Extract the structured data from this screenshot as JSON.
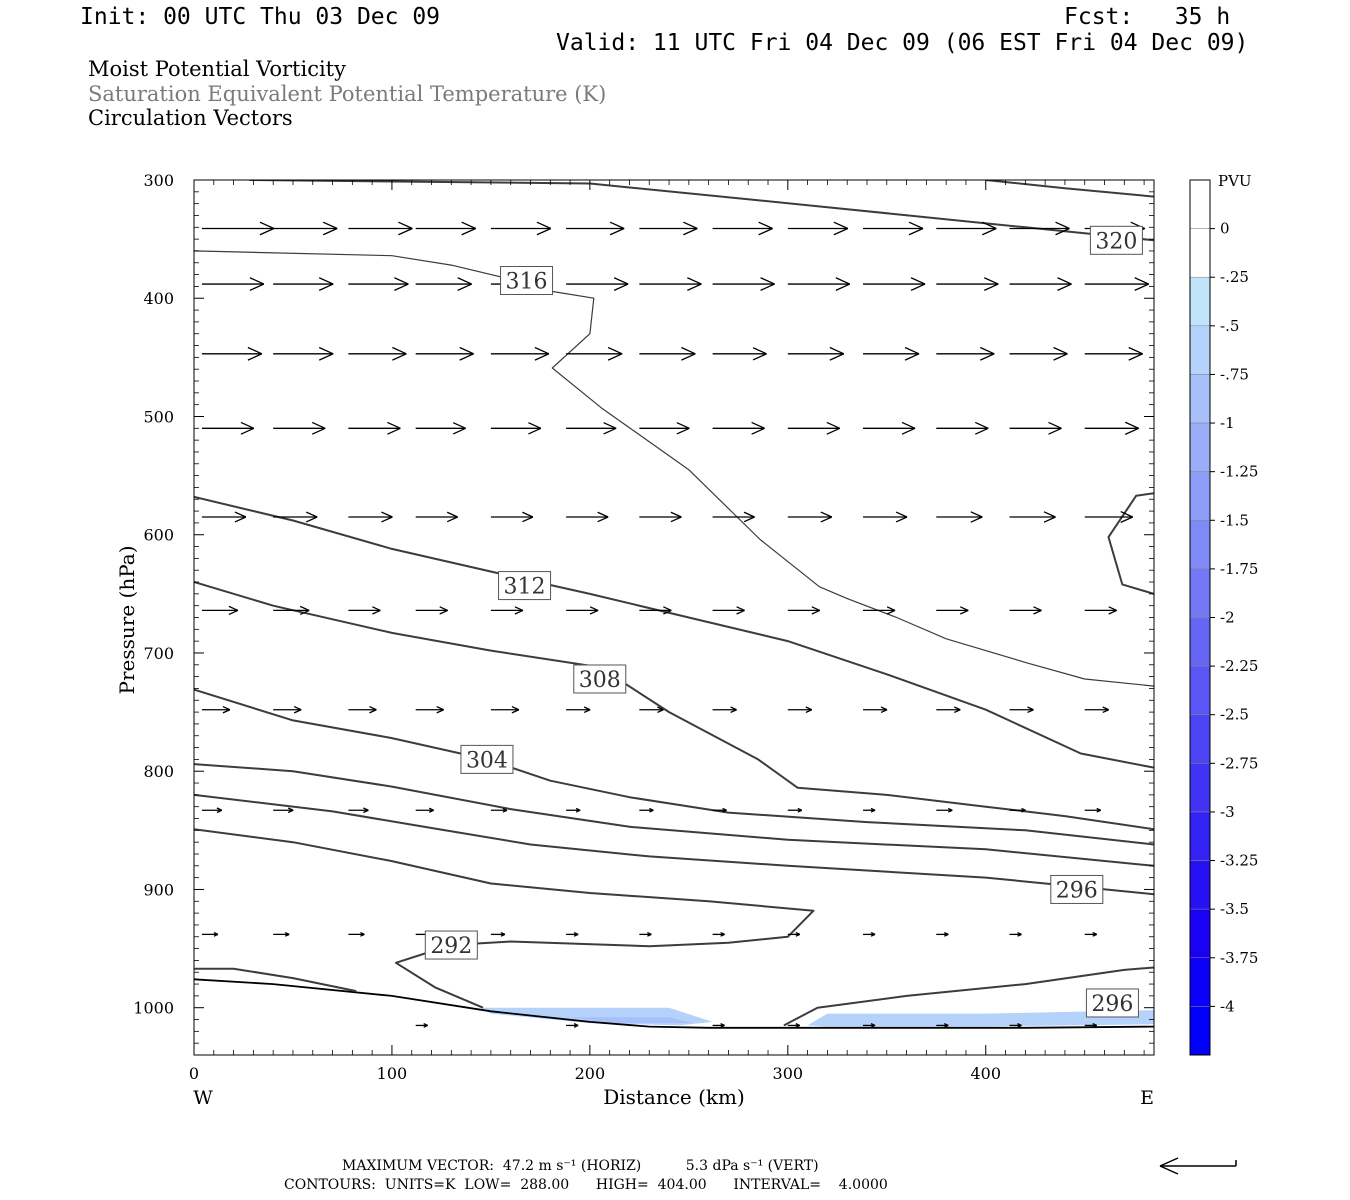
{
  "header": {
    "init": "Init: 00 UTC Thu 03 Dec 09",
    "fcst": "Fcst:   35 h",
    "valid": "Valid: 11 UTC Fri 04 Dec 09 (06 EST Fri 04 Dec 09)"
  },
  "titles": {
    "line1": "Moist Potential Vorticity",
    "line2": "Saturation Equivalent Potential Temperature (K)",
    "line3": "Circulation Vectors"
  },
  "colors": {
    "line1": "#000000",
    "line2": "#7a7a7a",
    "line3": "#000000",
    "contour": "#3c3c3c",
    "arrow": "#000000"
  },
  "footer": {
    "max_vector": "MAXIMUM VECTOR:  47.2 m s⁻¹ (HORIZ)          5.3 dPa s⁻¹ (VERT)",
    "contours": "CONTOURS:  UNITS=K  LOW=  288.00      HIGH=  404.00      INTERVAL=    4.0000"
  },
  "chart_data": {
    "type": "cross-section",
    "xlabel": "Distance (km)",
    "ylabel": "Pressure (hPa)",
    "xlim": [
      0,
      485
    ],
    "ylim": [
      1040,
      300
    ],
    "x_ticks": [
      0,
      100,
      200,
      300,
      400
    ],
    "y_ticks": [
      300,
      400,
      500,
      600,
      700,
      800,
      900,
      1000
    ],
    "west_label": "W",
    "east_label": "E",
    "grid": false,
    "colorbar": {
      "title": "PVU",
      "labels": [
        "0",
        "-.25",
        "-.5",
        "-.75",
        "-1",
        "-1.25",
        "-1.5",
        "-1.75",
        "-2",
        "-2.25",
        "-2.5",
        "-2.75",
        "-3",
        "-3.25",
        "-3.5",
        "-3.75",
        "-4"
      ],
      "colors": [
        "#ffffff",
        "#ffffff",
        "#c2e4fb",
        "#b4d2fa",
        "#a7c0f9",
        "#9aaef8",
        "#8d9cf7",
        "#808af6",
        "#7378f5",
        "#6666f5",
        "#5a55f4",
        "#4d44f4",
        "#4033f4",
        "#3322f4",
        "#2611f5",
        "#1a00f5",
        "#0d00f8",
        "#0000fc"
      ]
    },
    "ground": [
      [
        0,
        976
      ],
      [
        40,
        980
      ],
      [
        100,
        990
      ],
      [
        150,
        1003
      ],
      [
        200,
        1012
      ],
      [
        230,
        1016
      ],
      [
        260,
        1017
      ],
      [
        300,
        1017
      ],
      [
        360,
        1017
      ],
      [
        420,
        1017
      ],
      [
        485,
        1016
      ]
    ],
    "pv_shading": [
      {
        "level": "-.5",
        "points": [
          [
            145,
            1000
          ],
          [
            240,
            1000
          ],
          [
            262,
            1012
          ],
          [
            245,
            1015
          ],
          [
            200,
            1013
          ],
          [
            150,
            1005
          ]
        ]
      },
      {
        "level": "-.75",
        "points": [
          [
            190,
            1008
          ],
          [
            240,
            1008
          ],
          [
            252,
            1013
          ],
          [
            210,
            1013
          ]
        ]
      },
      {
        "level": "-.5",
        "points": [
          [
            310,
            1015
          ],
          [
            320,
            1005
          ],
          [
            400,
            1005
          ],
          [
            485,
            1002
          ],
          [
            485,
            1014
          ],
          [
            400,
            1016
          ],
          [
            320,
            1016
          ]
        ]
      }
    ],
    "contours": [
      {
        "value": 320,
        "label": "320",
        "label_pos": [
          466,
          351
        ],
        "points": [
          [
            28,
            300
          ],
          [
            200,
            303
          ],
          [
            320,
            323
          ],
          [
            420,
            340
          ],
          [
            485,
            351
          ]
        ]
      },
      {
        "value": 320,
        "label": "",
        "label_pos": null,
        "points": [
          [
            400,
            300
          ],
          [
            440,
            307
          ],
          [
            485,
            314
          ]
        ]
      },
      {
        "value": 316,
        "label": "316",
        "label_pos": [
          168,
          385
        ],
        "points": [
          [
            0,
            360
          ],
          [
            100,
            364
          ],
          [
            130,
            372
          ],
          [
            160,
            384
          ],
          [
            180,
            394
          ],
          [
            202,
            400
          ],
          [
            200,
            430
          ],
          [
            181,
            459
          ],
          [
            206,
            493
          ],
          [
            250,
            545
          ],
          [
            286,
            604
          ],
          [
            316,
            644
          ],
          [
            330,
            654
          ],
          [
            355,
            670
          ],
          [
            380,
            688
          ],
          [
            420,
            708
          ],
          [
            450,
            722
          ],
          [
            485,
            728
          ]
        ]
      },
      {
        "value": 316,
        "label": "",
        "label_pos": null,
        "points": [
          [
            485,
            565
          ],
          [
            476,
            567
          ],
          [
            462,
            602
          ],
          [
            469,
            642
          ],
          [
            485,
            650
          ]
        ]
      },
      {
        "value": 312,
        "label": "312",
        "label_pos": [
          167,
          643
        ],
        "points": [
          [
            0,
            568
          ],
          [
            50,
            588
          ],
          [
            100,
            612
          ],
          [
            160,
            635
          ],
          [
            200,
            650
          ],
          [
            250,
            670
          ],
          [
            300,
            690
          ],
          [
            350,
            718
          ],
          [
            400,
            748
          ],
          [
            448,
            785
          ],
          [
            485,
            797
          ]
        ]
      },
      {
        "value": 308,
        "label": "308",
        "label_pos": [
          205,
          722
        ],
        "points": [
          [
            0,
            640
          ],
          [
            40,
            660
          ],
          [
            100,
            683
          ],
          [
            150,
            698
          ],
          [
            205,
            712
          ],
          [
            240,
            750
          ],
          [
            285,
            790
          ],
          [
            305,
            814
          ],
          [
            350,
            820
          ],
          [
            400,
            830
          ],
          [
            440,
            838
          ],
          [
            485,
            849
          ]
        ]
      },
      {
        "value": 304,
        "label": "304",
        "label_pos": [
          148,
          790
        ],
        "points": [
          [
            0,
            731
          ],
          [
            50,
            757
          ],
          [
            100,
            772
          ],
          [
            148,
            790
          ],
          [
            180,
            808
          ],
          [
            220,
            822
          ],
          [
            270,
            835
          ],
          [
            340,
            843
          ],
          [
            420,
            850
          ],
          [
            485,
            862
          ]
        ]
      },
      {
        "value": 300,
        "label": "",
        "label_pos": null,
        "points": [
          [
            0,
            794
          ],
          [
            50,
            800
          ],
          [
            100,
            813
          ],
          [
            160,
            832
          ],
          [
            220,
            847
          ],
          [
            300,
            858
          ],
          [
            400,
            866
          ],
          [
            485,
            880
          ]
        ]
      },
      {
        "value": 296,
        "label": "296",
        "label_pos": [
          446,
          900
        ],
        "points": [
          [
            0,
            820
          ],
          [
            70,
            834
          ],
          [
            120,
            848
          ],
          [
            170,
            862
          ],
          [
            230,
            872
          ],
          [
            300,
            880
          ],
          [
            400,
            890
          ],
          [
            485,
            904
          ]
        ]
      },
      {
        "value": 296,
        "label": "296",
        "label_pos": [
          464,
          996
        ],
        "points": [
          [
            298,
            1015
          ],
          [
            315,
            1000
          ],
          [
            360,
            990
          ],
          [
            420,
            980
          ],
          [
            470,
            968
          ],
          [
            485,
            966
          ]
        ]
      },
      {
        "value": 292,
        "label": "292",
        "label_pos": [
          130,
          947
        ],
        "points": [
          [
            0,
            849
          ],
          [
            50,
            860
          ],
          [
            100,
            876
          ],
          [
            150,
            895
          ],
          [
            200,
            903
          ],
          [
            260,
            910
          ],
          [
            313,
            918
          ],
          [
            300,
            940
          ],
          [
            270,
            945
          ],
          [
            230,
            948
          ],
          [
            160,
            944
          ],
          [
            130,
            947
          ],
          [
            102,
            962
          ],
          [
            122,
            983
          ],
          [
            146,
            1000
          ]
        ]
      },
      {
        "value": 288,
        "label": "",
        "label_pos": null,
        "points": [
          [
            0,
            967
          ],
          [
            20,
            967
          ],
          [
            50,
            975
          ],
          [
            82,
            986
          ]
        ]
      }
    ],
    "vectors": [
      {
        "p": 341,
        "u": [
          [
            4,
            36
          ],
          [
            40,
            32
          ],
          [
            78,
            32
          ],
          [
            112,
            30
          ],
          [
            150,
            30
          ],
          [
            188,
            29
          ],
          [
            225,
            29
          ],
          [
            262,
            30
          ],
          [
            300,
            30
          ],
          [
            338,
            30
          ],
          [
            375,
            30
          ],
          [
            412,
            30
          ],
          [
            450,
            30
          ]
        ]
      },
      {
        "p": 388,
        "u": [
          [
            4,
            31
          ],
          [
            40,
            30
          ],
          [
            78,
            30
          ],
          [
            112,
            28
          ],
          [
            150,
            28
          ],
          [
            188,
            31
          ],
          [
            225,
            31
          ],
          [
            262,
            31
          ],
          [
            300,
            31
          ],
          [
            338,
            31
          ],
          [
            375,
            31
          ],
          [
            412,
            31
          ],
          [
            450,
            32
          ]
        ]
      },
      {
        "p": 447,
        "u": [
          [
            4,
            30
          ],
          [
            40,
            30
          ],
          [
            78,
            29
          ],
          [
            112,
            29
          ],
          [
            150,
            29
          ],
          [
            188,
            28
          ],
          [
            225,
            28
          ],
          [
            262,
            27
          ],
          [
            300,
            28
          ],
          [
            338,
            28
          ],
          [
            375,
            29
          ],
          [
            412,
            29
          ],
          [
            450,
            29
          ]
        ]
      },
      {
        "p": 510,
        "u": [
          [
            4,
            26
          ],
          [
            40,
            26
          ],
          [
            78,
            26
          ],
          [
            112,
            25
          ],
          [
            150,
            25
          ],
          [
            188,
            25
          ],
          [
            225,
            25
          ],
          [
            262,
            26
          ],
          [
            300,
            26
          ],
          [
            338,
            26
          ],
          [
            375,
            26
          ],
          [
            412,
            26
          ],
          [
            450,
            27
          ]
        ]
      },
      {
        "p": 585,
        "u": [
          [
            4,
            22
          ],
          [
            40,
            22
          ],
          [
            78,
            22
          ],
          [
            112,
            21
          ],
          [
            150,
            21
          ],
          [
            188,
            21
          ],
          [
            225,
            21
          ],
          [
            262,
            21
          ],
          [
            300,
            22
          ],
          [
            338,
            22
          ],
          [
            375,
            23
          ],
          [
            412,
            23
          ],
          [
            450,
            24
          ]
        ]
      },
      {
        "p": 664,
        "u": [
          [
            4,
            18
          ],
          [
            40,
            18
          ],
          [
            78,
            16
          ],
          [
            112,
            16
          ],
          [
            150,
            16
          ],
          [
            188,
            16
          ],
          [
            225,
            16
          ],
          [
            262,
            16
          ],
          [
            300,
            16
          ],
          [
            338,
            16
          ],
          [
            375,
            16
          ],
          [
            412,
            16
          ],
          [
            450,
            16
          ]
        ]
      },
      {
        "p": 748,
        "u": [
          [
            4,
            14
          ],
          [
            40,
            14
          ],
          [
            78,
            14
          ],
          [
            112,
            14
          ],
          [
            150,
            14
          ],
          [
            188,
            12
          ],
          [
            225,
            12
          ],
          [
            262,
            12
          ],
          [
            300,
            12
          ],
          [
            338,
            12
          ],
          [
            375,
            12
          ],
          [
            412,
            12
          ],
          [
            450,
            12
          ]
        ]
      },
      {
        "p": 833,
        "u": [
          [
            4,
            10
          ],
          [
            40,
            10
          ],
          [
            78,
            10
          ],
          [
            112,
            9
          ],
          [
            150,
            8
          ],
          [
            188,
            7
          ],
          [
            225,
            7
          ],
          [
            262,
            7
          ],
          [
            300,
            7
          ],
          [
            338,
            6
          ],
          [
            375,
            8
          ],
          [
            412,
            8
          ],
          [
            450,
            8
          ]
        ]
      },
      {
        "p": 938,
        "u": [
          [
            4,
            8
          ],
          [
            40,
            8
          ],
          [
            78,
            8
          ],
          [
            112,
            7
          ],
          [
            150,
            7
          ],
          [
            188,
            6
          ],
          [
            225,
            6
          ],
          [
            262,
            6
          ],
          [
            300,
            6
          ],
          [
            338,
            6
          ],
          [
            375,
            6
          ],
          [
            412,
            6
          ],
          [
            450,
            6
          ]
        ]
      },
      {
        "p": 1015,
        "u": [
          [
            112,
            6
          ],
          [
            188,
            6
          ],
          [
            262,
            6
          ],
          [
            300,
            6
          ],
          [
            338,
            6
          ],
          [
            375,
            6
          ],
          [
            412,
            6
          ],
          [
            450,
            6
          ]
        ]
      }
    ],
    "reference_vector": "left-pointing"
  }
}
